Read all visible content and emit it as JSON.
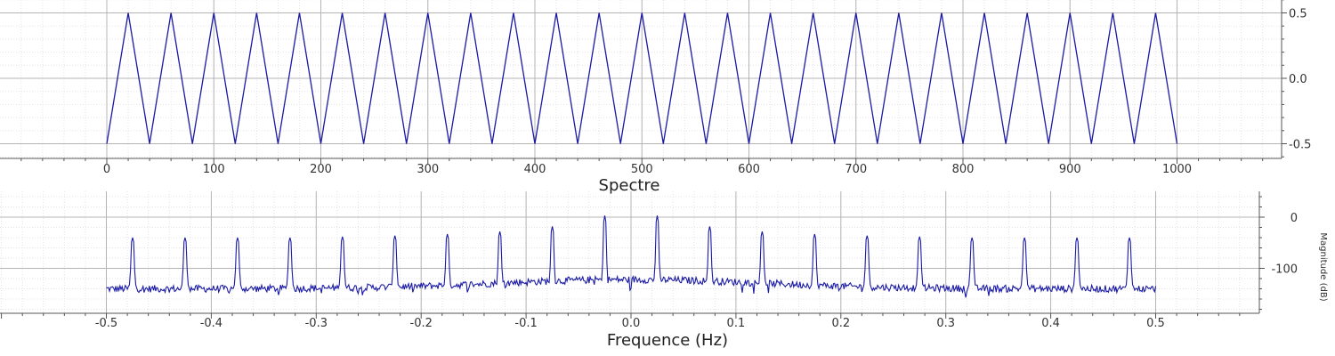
{
  "colors": {
    "signal": "#1a1aa6",
    "grid_major": "#b4b4b4",
    "grid_minor": "#e3e3e3",
    "axis": "#555555",
    "text": "#333333"
  },
  "chart_data": [
    {
      "type": "line",
      "title": "",
      "xlabel": "",
      "ylabel": "",
      "xlim": [
        -100,
        1100
      ],
      "ylim": [
        -0.62,
        0.62
      ],
      "x_ticks": [
        0,
        100,
        200,
        300,
        400,
        500,
        600,
        700,
        800,
        900,
        1000
      ],
      "x_tick_labels": [
        "0",
        "100",
        "200",
        "300",
        "400",
        "500",
        "600",
        "700",
        "800",
        "900",
        "1000"
      ],
      "y_ticks": [
        -0.5,
        0.0,
        0.5
      ],
      "y_tick_labels": [
        "-0.5",
        "0.0",
        "0.5"
      ],
      "y_axis_side": "right",
      "grid": true,
      "series": [
        {
          "waveform": "triangle",
          "period": 40,
          "first_peak_x": 20,
          "x_start": 0,
          "x_end": 1000,
          "min": -0.5,
          "max": 0.5
        }
      ]
    },
    {
      "type": "line",
      "title": "Spectre",
      "xlabel": "Frequence (Hz)",
      "ylabel": "Magnitude (dB)",
      "xlim": [
        -0.6,
        0.6
      ],
      "ylim": [
        -190,
        50
      ],
      "x_ticks": [
        -0.5,
        -0.4,
        -0.3,
        -0.2,
        -0.1,
        0.0,
        0.1,
        0.2,
        0.3,
        0.4,
        0.5
      ],
      "x_tick_labels": [
        "-0.5",
        "-0.4",
        "-0.3",
        "-0.2",
        "-0.1",
        "0.0",
        "0.1",
        "0.2",
        "0.3",
        "0.4",
        "0.5"
      ],
      "y_ticks": [
        -100,
        0
      ],
      "y_tick_labels": [
        "-100",
        "0"
      ],
      "y_axis_side": "right",
      "grid": true,
      "series": [
        {
          "noise_floor_db": -140,
          "peaks": [
            {
              "f": -0.475,
              "db": -40
            },
            {
              "f": -0.425,
              "db": -40
            },
            {
              "f": -0.375,
              "db": -40
            },
            {
              "f": -0.325,
              "db": -40
            },
            {
              "f": -0.275,
              "db": -38
            },
            {
              "f": -0.225,
              "db": -36
            },
            {
              "f": -0.175,
              "db": -33
            },
            {
              "f": -0.125,
              "db": -28
            },
            {
              "f": -0.075,
              "db": -18
            },
            {
              "f": -0.025,
              "db": 3
            },
            {
              "f": 0.025,
              "db": 3
            },
            {
              "f": 0.075,
              "db": -18
            },
            {
              "f": 0.125,
              "db": -28
            },
            {
              "f": 0.175,
              "db": -33
            },
            {
              "f": 0.225,
              "db": -36
            },
            {
              "f": 0.275,
              "db": -38
            },
            {
              "f": 0.325,
              "db": -40
            },
            {
              "f": 0.375,
              "db": -40
            },
            {
              "f": 0.425,
              "db": -40
            },
            {
              "f": 0.475,
              "db": -40
            }
          ]
        }
      ]
    }
  ]
}
